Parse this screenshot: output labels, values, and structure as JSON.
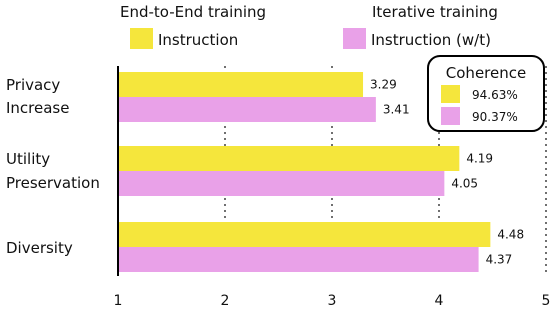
{
  "chart_data": {
    "type": "bar",
    "orientation": "horizontal",
    "categories": [
      [
        "Privacy",
        "Increase"
      ],
      [
        "Utility",
        "Preservation"
      ],
      [
        "Diversity"
      ]
    ],
    "groups": [
      {
        "header": "End-to-End training",
        "series_index": 0
      },
      {
        "header": "Iterative training",
        "series_index": 1
      }
    ],
    "series": [
      {
        "name": "Instruction",
        "color": "#f5e63c",
        "values": [
          3.29,
          4.19,
          4.48
        ]
      },
      {
        "name": "Instruction (w/t)",
        "color": "#e9a1e8",
        "values": [
          3.41,
          4.05,
          4.37
        ]
      }
    ],
    "xlim": [
      1,
      5
    ],
    "xticks": [
      1,
      2,
      3,
      4,
      5
    ],
    "grid": "dotted vertical",
    "legend": "top",
    "coherence": {
      "title": "Coherence",
      "values": [
        "94.63%",
        "90.37%"
      ]
    }
  }
}
